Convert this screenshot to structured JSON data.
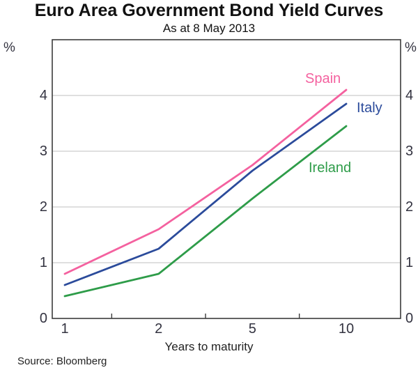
{
  "title": "Euro Area Government Bond Yield Curves",
  "subtitle": "As at 8 May 2013",
  "source": "Source: Bloomberg",
  "chart_data": {
    "type": "line",
    "title": "Euro Area Government Bond Yield Curves",
    "subtitle": "As at 8 May 2013",
    "categories": [
      "1",
      "2",
      "5",
      "10"
    ],
    "xlabel": "Years to maturity",
    "ylabel": "%",
    "ylim": [
      0,
      5
    ],
    "yticks": [
      0,
      1,
      2,
      3,
      4
    ],
    "grid": true,
    "legend_position": "inline-labels-on-lines",
    "series": [
      {
        "name": "Spain",
        "color": "#f4619f",
        "values": [
          0.8,
          1.6,
          2.75,
          4.1
        ]
      },
      {
        "name": "Italy",
        "color": "#2b4b9b",
        "values": [
          0.6,
          1.25,
          2.65,
          3.85
        ]
      },
      {
        "name": "Ireland",
        "color": "#2e9c49",
        "values": [
          0.4,
          0.8,
          2.15,
          3.45
        ]
      }
    ],
    "source": "Source: Bloomberg"
  },
  "colors": {
    "grid": "#cccccc",
    "axis": "#3b3b3b",
    "text": "#333340"
  }
}
